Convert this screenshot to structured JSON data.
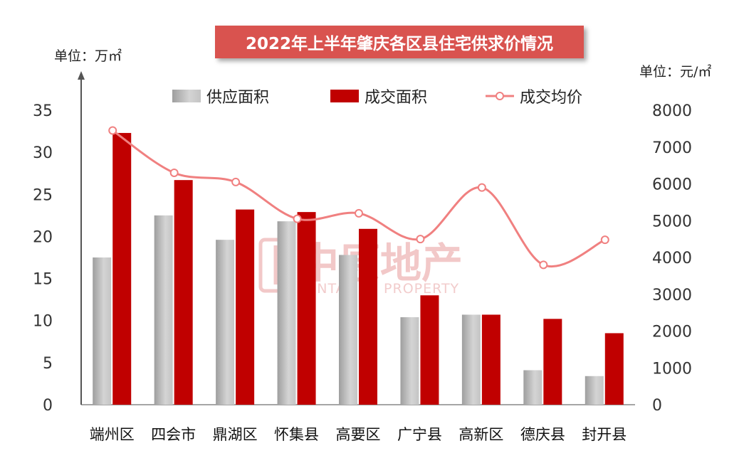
{
  "chart_data": {
    "type": "bar",
    "title": "2022年上半年肇庆各区县住宅供求价情况",
    "left_axis_unit": "单位：万㎡",
    "right_axis_unit": "单位：元/㎡",
    "categories": [
      "端州区",
      "四会市",
      "鼎湖区",
      "怀集县",
      "高要区",
      "广宁县",
      "高新区",
      "德庆县",
      "封开县"
    ],
    "series": [
      {
        "name": "供应面积",
        "type": "bar",
        "axis": "left",
        "color": "#bdbdbd",
        "values": [
          17.5,
          22.5,
          19.6,
          21.8,
          17.8,
          10.4,
          10.7,
          4.1,
          3.4
        ]
      },
      {
        "name": "成交面积",
        "type": "bar",
        "axis": "left",
        "color": "#c00000",
        "values": [
          32.3,
          26.7,
          23.2,
          22.9,
          20.9,
          13.0,
          10.7,
          10.2,
          8.5
        ]
      },
      {
        "name": "成交均价",
        "type": "line",
        "axis": "right",
        "color": "#f08080",
        "values": [
          7450,
          6300,
          6050,
          5050,
          5200,
          4500,
          5900,
          3800,
          4480
        ]
      }
    ],
    "left_axis": {
      "min": 0,
      "max": 35,
      "ticks": [
        0,
        5,
        10,
        15,
        20,
        25,
        30,
        35
      ]
    },
    "right_axis": {
      "min": 0,
      "max": 8000,
      "ticks": [
        0,
        1000,
        2000,
        3000,
        4000,
        5000,
        6000,
        7000,
        8000
      ]
    },
    "legend_position": "top",
    "grid": false
  },
  "watermark": {
    "text_cn": "中原地产",
    "text_en": "CENTALINE PROPERTY"
  }
}
